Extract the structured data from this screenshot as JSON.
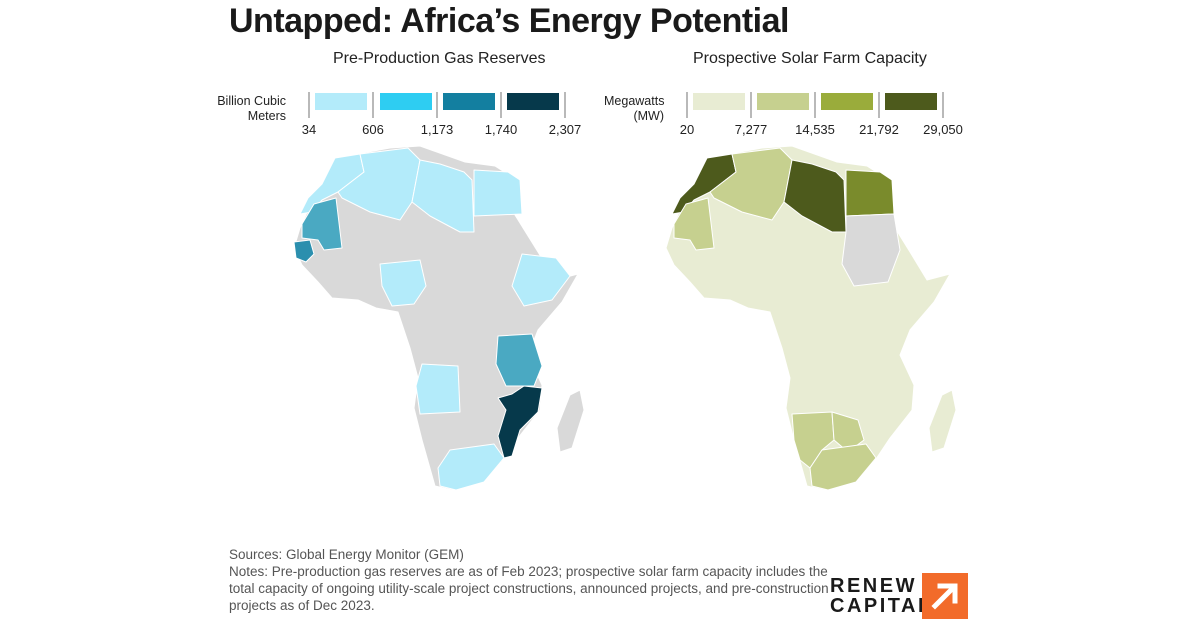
{
  "title": "Untapped: Africa’s Energy Potential",
  "maps": [
    {
      "subtitle": "Pre-Production Gas Reserves",
      "legend_label": [
        "Billion Cubic",
        "Meters"
      ],
      "legend_ticks": [
        "34",
        "606",
        "1,173",
        "1,740",
        "2,307"
      ],
      "legend_colors": [
        "#b3ebfa",
        "#2ecdf2",
        "#137fa0",
        "#06394b"
      ],
      "no_data_color": "#d9d9d9"
    },
    {
      "subtitle": "Prospective Solar Farm Capacity",
      "legend_label": [
        "Megawatts",
        "(MW)"
      ],
      "legend_ticks": [
        "20",
        "7,277",
        "14,535",
        "21,792",
        "29,050"
      ],
      "legend_colors": [
        "#e8ecd3",
        "#c6d08f",
        "#9aac3b",
        "#4d5a1c"
      ],
      "no_data_color": "#d9d9d9"
    }
  ],
  "chart_data": [
    {
      "type": "choropleth",
      "title": "Pre-Production Gas Reserves",
      "unit": "Billion Cubic Meters",
      "bins": [
        34,
        606,
        1173,
        1740,
        2307
      ],
      "highlighted_regions": [
        {
          "region": "Morocco",
          "bin": 1
        },
        {
          "region": "Algeria",
          "bin": 1
        },
        {
          "region": "Libya",
          "bin": 1
        },
        {
          "region": "Egypt",
          "bin": 1
        },
        {
          "region": "Mauritania",
          "bin": 3
        },
        {
          "region": "Senegal",
          "bin": 3
        },
        {
          "region": "Nigeria",
          "bin": 1
        },
        {
          "region": "Ethiopia",
          "bin": 1
        },
        {
          "region": "Tanzania",
          "bin": 3
        },
        {
          "region": "Angola",
          "bin": 1
        },
        {
          "region": "Mozambique",
          "bin": 4
        },
        {
          "region": "South Africa",
          "bin": 1
        }
      ]
    },
    {
      "type": "choropleth",
      "title": "Prospective Solar Farm Capacity",
      "unit": "Megawatts (MW)",
      "bins": [
        20,
        7277,
        14535,
        21792,
        29050
      ],
      "highlighted_regions": [
        {
          "region": "Morocco",
          "bin": 4
        },
        {
          "region": "Libya",
          "bin": 4
        },
        {
          "region": "Egypt",
          "bin": 3
        },
        {
          "region": "Algeria",
          "bin": 2
        },
        {
          "region": "Mauritania",
          "bin": 2
        },
        {
          "region": "Namibia",
          "bin": 2
        },
        {
          "region": "South Africa",
          "bin": 2
        },
        {
          "region": "Botswana",
          "bin": 2
        },
        {
          "region": "Sudan",
          "bin": 0
        }
      ]
    }
  ],
  "footer": {
    "sources": "Sources: Global Energy Monitor (GEM)",
    "notes": "Notes: Pre-production gas reserves are as of Feb 2023; prospective solar farm capacity includes the total capacity of ongoing utility-scale project constructions, announced projects, and pre-construction projects as of Dec 2023."
  },
  "logo": {
    "line1": "RENEW",
    "line2": "CAPITAL",
    "icon": "arrow-up-right-icon"
  }
}
